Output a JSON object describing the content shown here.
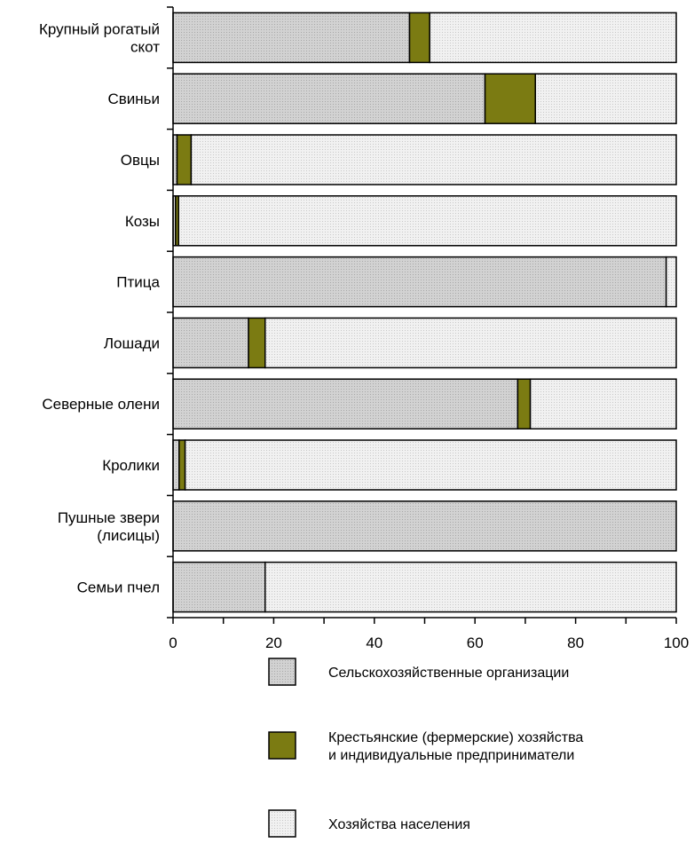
{
  "chart_data": {
    "type": "bar",
    "orientation": "horizontal",
    "stacked": true,
    "categories": [
      [
        "Крупный рогатый",
        "скот"
      ],
      [
        "Свиньи"
      ],
      [
        "Овцы"
      ],
      [
        "Козы"
      ],
      [
        "Птица"
      ],
      [
        "Лошади"
      ],
      [
        "Северные олени"
      ],
      [
        "Кролики"
      ],
      [
        "Пушные звери",
        "(лисицы)"
      ],
      [
        "Семьи пчел"
      ]
    ],
    "series": [
      {
        "name": "Сельскохозяйственные организации",
        "values": [
          47,
          62,
          0.8,
          0.5,
          98,
          15,
          68.5,
          1.2,
          100,
          18.3
        ]
      },
      {
        "name": "Крестьянские (фермерские) хозяйства и индивидуальные предприниматели",
        "legend_lines": [
          "Крестьянские (фермерские) хозяйства",
          "и индивидуальные предприниматели"
        ],
        "values": [
          4,
          10,
          2.8,
          0.6,
          0,
          3.3,
          2.5,
          1.2,
          0,
          0
        ]
      },
      {
        "name": "Хозяйства населения",
        "values": [
          49,
          28,
          96.4,
          98.9,
          2,
          81.7,
          29,
          97.6,
          0,
          81.7
        ]
      }
    ],
    "xticks": [
      "0",
      "20",
      "40",
      "60",
      "80",
      "100"
    ],
    "xlim": [
      0,
      100
    ],
    "grid": false,
    "legend_position": "bottom",
    "colors": [
      "#c9c9c9",
      "#7b7b12",
      "#ececec"
    ]
  }
}
